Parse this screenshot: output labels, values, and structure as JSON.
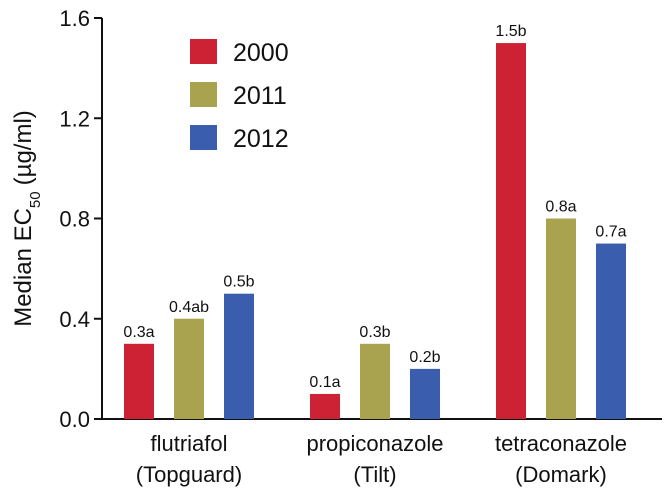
{
  "chart_data": {
    "type": "bar",
    "ylabel": "Median EC",
    "ylabel_subscript": "50",
    "ylabel_unit": "(µg/ml)",
    "ylim": [
      0,
      1.6
    ],
    "yticks": [
      {
        "value": 0.0,
        "label": "0.0"
      },
      {
        "value": 0.4,
        "label": "0.4"
      },
      {
        "value": 0.8,
        "label": "0.8"
      },
      {
        "value": 1.2,
        "label": "1.2"
      },
      {
        "value": 1.6,
        "label": "1.6"
      }
    ],
    "categories": [
      {
        "line1": "flutriafol",
        "line2": "(Topguard)"
      },
      {
        "line1": "propiconazole",
        "line2": "(Tilt)"
      },
      {
        "line1": "tetraconazole",
        "line2": "(Domark)"
      }
    ],
    "series": [
      {
        "name": "2000",
        "color": "#cc2233",
        "values": [
          0.3,
          0.1,
          1.5
        ],
        "labels": [
          "0.3a",
          "0.1a",
          "1.5b"
        ]
      },
      {
        "name": "2011",
        "color": "#a9a350",
        "values": [
          0.4,
          0.3,
          0.8
        ],
        "labels": [
          "0.4ab",
          "0.3b",
          "0.8a"
        ]
      },
      {
        "name": "2012",
        "color": "#3a5dae",
        "values": [
          0.5,
          0.2,
          0.7
        ],
        "labels": [
          "0.5b",
          "0.2b",
          "0.7a"
        ]
      }
    ],
    "legend": "top-left",
    "grid": false
  }
}
